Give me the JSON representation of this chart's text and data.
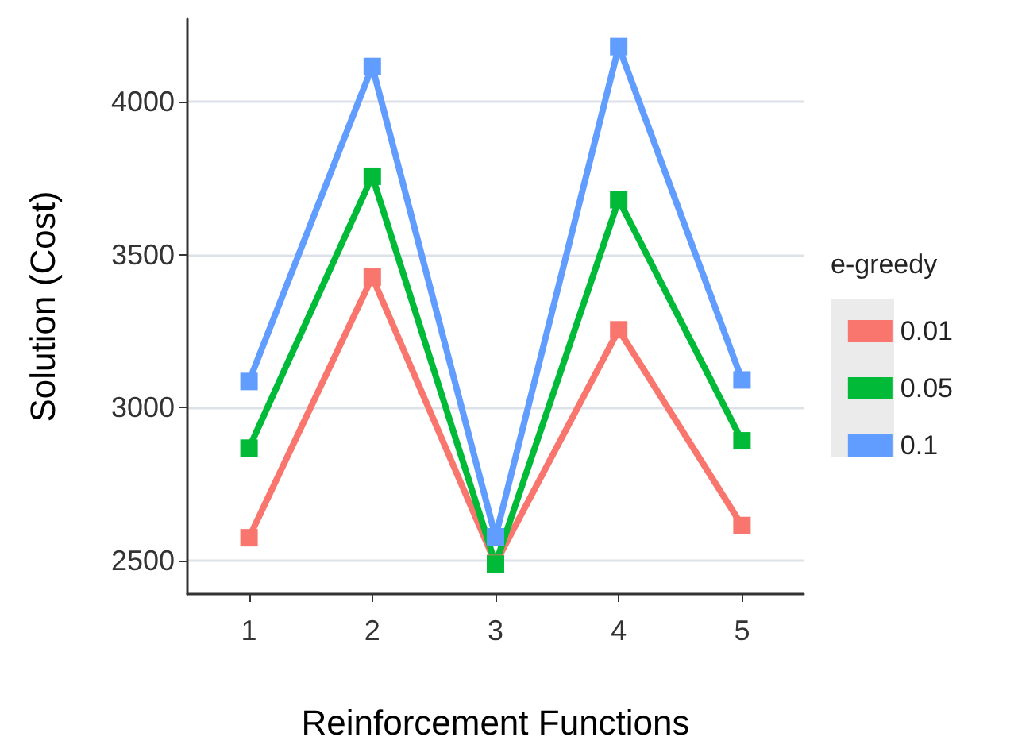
{
  "chart_data": {
    "type": "line",
    "xlabel": "Reinforcement Functions",
    "ylabel": "Solution (Cost)",
    "legend_title": "e-greedy",
    "categories": [
      "1",
      "2",
      "3",
      "4",
      "5"
    ],
    "series": [
      {
        "name": "0.01",
        "color": "#f8766d",
        "values": [
          2574,
          3426,
          2490,
          3254,
          2614
        ]
      },
      {
        "name": "0.05",
        "color": "#00ba38",
        "values": [
          2867,
          3756,
          2488,
          3679,
          2891
        ]
      },
      {
        "name": "0.1",
        "color": "#619cff",
        "values": [
          3085,
          4115,
          2577,
          4180,
          3090
        ]
      }
    ],
    "ylim": [
      2390,
      4270
    ],
    "yticks": [
      2500,
      3000,
      3500,
      4000
    ],
    "grid": "y",
    "legend": "right",
    "marker": "square",
    "line_style": "solid"
  }
}
